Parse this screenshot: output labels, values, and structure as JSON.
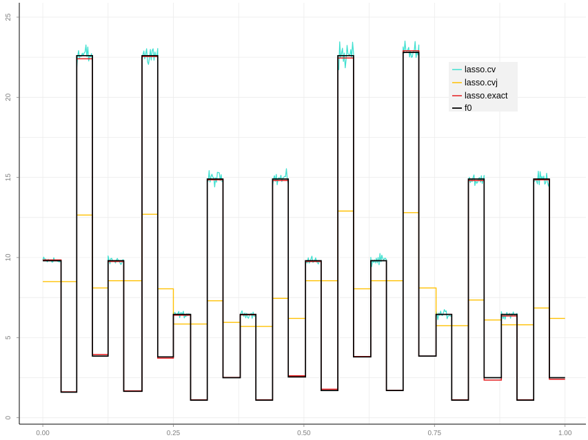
{
  "chart_data": {
    "type": "line",
    "title": "",
    "xlabel": "",
    "ylabel": "",
    "xlim": [
      -0.045,
      1.04
    ],
    "ylim": [
      -0.4,
      25.9
    ],
    "x_ticks": [
      0,
      0.25,
      0.5,
      0.75,
      1
    ],
    "x_tick_labels": [
      "0.00",
      "0.25",
      "0.50",
      "0.75",
      "1.00"
    ],
    "y_ticks": [
      0,
      5,
      10,
      15,
      20,
      25
    ],
    "y_tick_labels": [
      "0",
      "5",
      "10",
      "15",
      "20",
      "25"
    ],
    "grid": true,
    "legend_position": "top-right",
    "blocks": [
      [
        0.0,
        0.035,
        9.8
      ],
      [
        0.035,
        0.065,
        1.6
      ],
      [
        0.065,
        0.095,
        22.6
      ],
      [
        0.095,
        0.125,
        3.85
      ],
      [
        0.125,
        0.155,
        9.8
      ],
      [
        0.155,
        0.19,
        1.65
      ],
      [
        0.19,
        0.22,
        22.6
      ],
      [
        0.22,
        0.25,
        3.8
      ],
      [
        0.25,
        0.283,
        6.45
      ],
      [
        0.283,
        0.315,
        1.1
      ],
      [
        0.315,
        0.345,
        14.9
      ],
      [
        0.345,
        0.378,
        2.5
      ],
      [
        0.378,
        0.408,
        6.45
      ],
      [
        0.408,
        0.44,
        1.1
      ],
      [
        0.44,
        0.47,
        14.9
      ],
      [
        0.47,
        0.503,
        2.55
      ],
      [
        0.503,
        0.533,
        9.8
      ],
      [
        0.533,
        0.565,
        1.7
      ],
      [
        0.565,
        0.595,
        22.6
      ],
      [
        0.595,
        0.628,
        3.8
      ],
      [
        0.628,
        0.658,
        9.8
      ],
      [
        0.658,
        0.69,
        1.7
      ],
      [
        0.69,
        0.72,
        22.8
      ],
      [
        0.72,
        0.753,
        3.85
      ],
      [
        0.753,
        0.783,
        6.45
      ],
      [
        0.783,
        0.815,
        1.1
      ],
      [
        0.815,
        0.845,
        14.9
      ],
      [
        0.845,
        0.878,
        2.5
      ],
      [
        0.878,
        0.908,
        6.45
      ],
      [
        0.908,
        0.94,
        1.1
      ],
      [
        0.94,
        0.97,
        14.9
      ],
      [
        0.97,
        1.0,
        2.5
      ]
    ],
    "series": [
      {
        "name": "lasso.cv",
        "color": "#40E0D0",
        "note": "f0 plus noise on the elevated plateaus, the same as f0 on the low segments",
        "noise_amp": [
          0.25,
          0,
          0.8,
          0,
          0.25,
          0,
          0.9,
          0,
          0.2,
          0,
          0.45,
          0,
          0.2,
          0,
          0.45,
          0,
          0.3,
          0,
          0.85,
          0,
          0.35,
          0,
          0.65,
          0,
          0.25,
          0,
          0.45,
          0,
          0.2,
          0,
          0.4,
          0
        ]
      },
      {
        "name": "lasso.cvj",
        "color": "#FFC000",
        "steps": [
          [
            0.0,
            0.065,
            8.5
          ],
          [
            0.065,
            0.095,
            12.65
          ],
          [
            0.095,
            0.125,
            8.1
          ],
          [
            0.125,
            0.19,
            8.55
          ],
          [
            0.19,
            0.22,
            12.7
          ],
          [
            0.22,
            0.25,
            8.05
          ],
          [
            0.25,
            0.315,
            5.85
          ],
          [
            0.315,
            0.345,
            7.3
          ],
          [
            0.345,
            0.378,
            5.95
          ],
          [
            0.378,
            0.44,
            5.7
          ],
          [
            0.44,
            0.47,
            7.45
          ],
          [
            0.47,
            0.503,
            6.2
          ],
          [
            0.503,
            0.565,
            8.55
          ],
          [
            0.565,
            0.595,
            12.9
          ],
          [
            0.595,
            0.628,
            8.05
          ],
          [
            0.628,
            0.69,
            8.55
          ],
          [
            0.69,
            0.72,
            12.8
          ],
          [
            0.72,
            0.753,
            8.1
          ],
          [
            0.753,
            0.815,
            5.75
          ],
          [
            0.815,
            0.845,
            7.35
          ],
          [
            0.845,
            0.878,
            6.1
          ],
          [
            0.878,
            0.94,
            5.8
          ],
          [
            0.94,
            0.97,
            6.85
          ],
          [
            0.97,
            1.0,
            6.2
          ]
        ]
      },
      {
        "name": "lasso.exact",
        "color": "#E41A1C",
        "steps": [
          [
            0.0,
            0.035,
            9.85
          ],
          [
            0.035,
            0.065,
            1.62
          ],
          [
            0.065,
            0.095,
            22.4
          ],
          [
            0.095,
            0.125,
            3.95
          ],
          [
            0.125,
            0.155,
            9.75
          ],
          [
            0.155,
            0.19,
            1.68
          ],
          [
            0.19,
            0.22,
            22.55
          ],
          [
            0.22,
            0.25,
            3.72
          ],
          [
            0.25,
            0.283,
            6.4
          ],
          [
            0.283,
            0.315,
            1.12
          ],
          [
            0.315,
            0.345,
            14.85
          ],
          [
            0.345,
            0.378,
            2.52
          ],
          [
            0.378,
            0.408,
            6.42
          ],
          [
            0.408,
            0.44,
            1.12
          ],
          [
            0.44,
            0.47,
            14.8
          ],
          [
            0.47,
            0.503,
            2.62
          ],
          [
            0.503,
            0.533,
            9.75
          ],
          [
            0.533,
            0.565,
            1.78
          ],
          [
            0.565,
            0.595,
            22.45
          ],
          [
            0.595,
            0.628,
            3.82
          ],
          [
            0.628,
            0.658,
            9.8
          ],
          [
            0.658,
            0.69,
            1.72
          ],
          [
            0.69,
            0.72,
            22.9
          ],
          [
            0.72,
            0.753,
            3.85
          ],
          [
            0.753,
            0.783,
            6.45
          ],
          [
            0.783,
            0.815,
            1.12
          ],
          [
            0.815,
            0.845,
            14.8
          ],
          [
            0.845,
            0.878,
            2.35
          ],
          [
            0.878,
            0.908,
            6.35
          ],
          [
            0.908,
            0.94,
            1.12
          ],
          [
            0.94,
            0.97,
            14.85
          ],
          [
            0.97,
            1.0,
            2.4
          ]
        ]
      },
      {
        "name": "f0",
        "color": "#000000",
        "note": "piecewise-constant true signal given by blocks"
      }
    ]
  }
}
